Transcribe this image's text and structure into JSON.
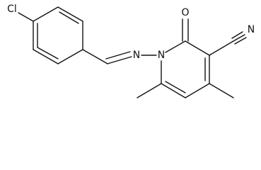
{
  "atoms": [
    {
      "label": "Cl"
    },
    {
      "label": "N"
    },
    {
      "label": "N"
    },
    {
      "label": "O"
    },
    {
      "label": "N"
    }
  ]
}
